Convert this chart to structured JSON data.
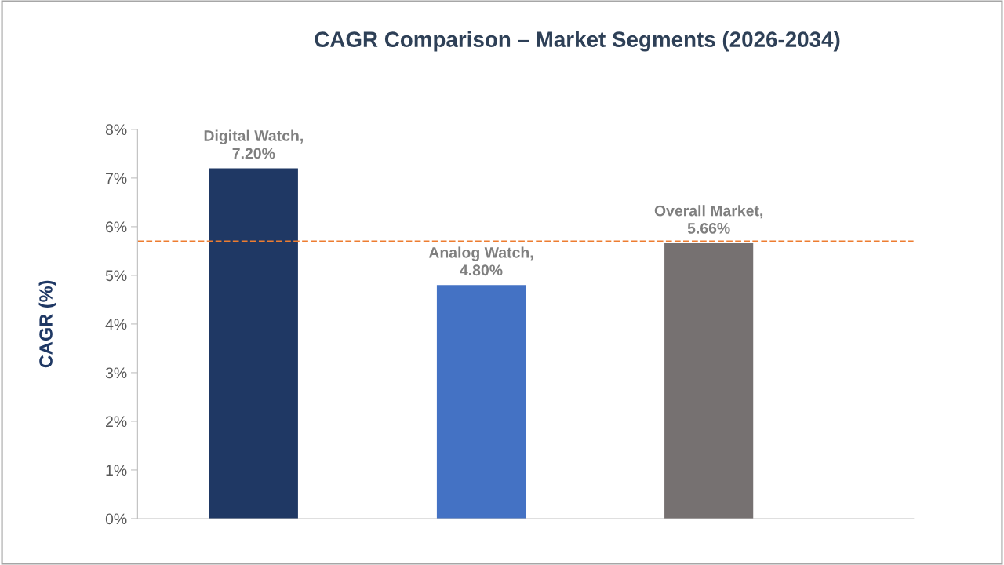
{
  "chart_data": {
    "type": "bar",
    "title": "CAGR Comparison – Market Segments (2026-2034)",
    "ylabel": "CAGR (%)",
    "categories": [
      null,
      null,
      null
    ],
    "values": [
      7.2,
      4.8,
      5.66
    ],
    "colors": [
      "#1f3864",
      "#4472c4",
      "#767171"
    ],
    "value_labels": [
      "Digital Watch,\n7.20%",
      "Analog Watch,\n4.80%",
      "Overall Market,\n5.66%"
    ],
    "ylim": [
      0,
      8
    ],
    "yticks": [
      {
        "value": 0,
        "label": "0%"
      },
      {
        "value": 1,
        "label": "1%"
      },
      {
        "value": 2,
        "label": "2%"
      },
      {
        "value": 3,
        "label": "3%"
      },
      {
        "value": 4,
        "label": "4%"
      },
      {
        "value": 5,
        "label": "5%"
      },
      {
        "value": 6,
        "label": "6%"
      },
      {
        "value": 7,
        "label": "7%"
      },
      {
        "value": 8,
        "label": "8%"
      }
    ],
    "ref_lines": [
      {
        "axis": "y",
        "value": 5.7,
        "label": null,
        "color": "#ed7d31",
        "line_style": "dashed"
      }
    ],
    "grid": false,
    "legend": false
  }
}
